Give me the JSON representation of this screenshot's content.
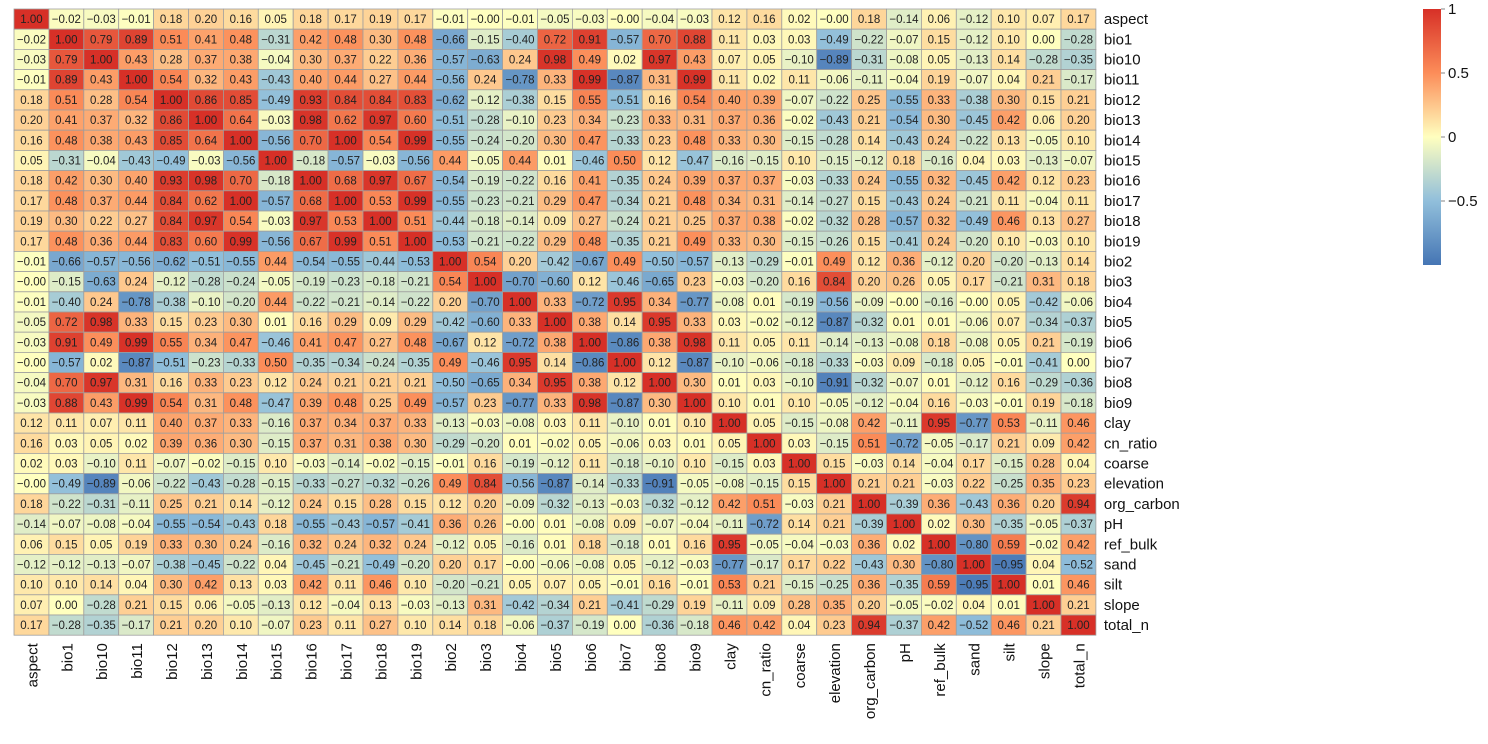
{
  "chart_data": {
    "type": "heatmap",
    "title": "",
    "variables": [
      "aspect",
      "bio1",
      "bio10",
      "bio11",
      "bio12",
      "bio13",
      "bio14",
      "bio15",
      "bio16",
      "bio17",
      "bio18",
      "bio19",
      "bio2",
      "bio3",
      "bio4",
      "bio5",
      "bio6",
      "bio7",
      "bio8",
      "bio9",
      "clay",
      "cn_ratio",
      "coarse",
      "elevation",
      "org_carbon",
      "pH",
      "ref_bulk",
      "sand",
      "silt",
      "slope",
      "total_n"
    ],
    "matrix": [
      [
        1.0,
        -0.02,
        -0.03,
        -0.01,
        0.18,
        0.2,
        0.16,
        0.05,
        0.18,
        0.17,
        0.19,
        0.17,
        -0.01,
        -0.0,
        -0.01,
        -0.05,
        -0.03,
        -0.0,
        -0.04,
        -0.03,
        0.12,
        0.16,
        0.02,
        -0.0,
        0.18,
        -0.14,
        0.06,
        -0.12,
        0.1,
        0.07,
        0.17
      ],
      [
        -0.02,
        1.0,
        0.79,
        0.89,
        0.51,
        0.41,
        0.48,
        -0.31,
        0.42,
        0.48,
        0.3,
        0.48,
        -0.66,
        -0.15,
        -0.4,
        0.72,
        0.91,
        -0.57,
        0.7,
        0.88,
        0.11,
        0.03,
        0.03,
        -0.49,
        -0.22,
        -0.07,
        0.15,
        -0.12,
        0.1,
        0.0,
        -0.28
      ],
      [
        -0.03,
        0.79,
        1.0,
        0.43,
        0.28,
        0.37,
        0.38,
        -0.04,
        0.3,
        0.37,
        0.22,
        0.36,
        -0.57,
        -0.63,
        0.24,
        0.98,
        0.49,
        0.02,
        0.97,
        0.43,
        0.07,
        0.05,
        -0.1,
        -0.89,
        -0.31,
        -0.08,
        0.05,
        -0.13,
        0.14,
        -0.28,
        -0.35
      ],
      [
        -0.01,
        0.89,
        0.43,
        1.0,
        0.54,
        0.32,
        0.43,
        -0.43,
        0.4,
        0.44,
        0.27,
        0.44,
        -0.56,
        0.24,
        -0.78,
        0.33,
        0.99,
        -0.87,
        0.31,
        0.99,
        0.11,
        0.02,
        0.11,
        -0.06,
        -0.11,
        -0.04,
        0.19,
        -0.07,
        0.04,
        0.21,
        -0.17
      ],
      [
        0.18,
        0.51,
        0.28,
        0.54,
        1.0,
        0.86,
        0.85,
        -0.49,
        0.93,
        0.84,
        0.84,
        0.83,
        -0.62,
        -0.12,
        -0.38,
        0.15,
        0.55,
        -0.51,
        0.16,
        0.54,
        0.4,
        0.39,
        -0.07,
        -0.22,
        0.25,
        -0.55,
        0.33,
        -0.38,
        0.3,
        0.15,
        0.21
      ],
      [
        0.2,
        0.41,
        0.37,
        0.32,
        0.86,
        1.0,
        0.64,
        -0.03,
        0.98,
        0.62,
        0.97,
        0.6,
        -0.51,
        -0.28,
        -0.1,
        0.23,
        0.34,
        -0.23,
        0.33,
        0.31,
        0.37,
        0.36,
        -0.02,
        -0.43,
        0.21,
        -0.54,
        0.3,
        -0.45,
        0.42,
        0.06,
        0.2
      ],
      [
        0.16,
        0.48,
        0.38,
        0.43,
        0.85,
        0.64,
        1.0,
        -0.56,
        0.7,
        1.0,
        0.54,
        0.99,
        -0.55,
        -0.24,
        -0.2,
        0.3,
        0.47,
        -0.33,
        0.23,
        0.48,
        0.33,
        0.3,
        -0.15,
        -0.28,
        0.14,
        -0.43,
        0.24,
        -0.22,
        0.13,
        -0.05,
        0.1
      ],
      [
        0.05,
        -0.31,
        -0.04,
        -0.43,
        -0.49,
        -0.03,
        -0.56,
        1.0,
        -0.18,
        -0.57,
        -0.03,
        -0.56,
        0.44,
        -0.05,
        0.44,
        0.01,
        -0.46,
        0.5,
        0.12,
        -0.47,
        -0.16,
        -0.15,
        0.1,
        -0.15,
        -0.12,
        0.18,
        -0.16,
        0.04,
        0.03,
        -0.13,
        -0.07
      ],
      [
        0.18,
        0.42,
        0.3,
        0.4,
        0.93,
        0.98,
        0.7,
        -0.18,
        1.0,
        0.68,
        0.97,
        0.67,
        -0.54,
        -0.19,
        -0.22,
        0.16,
        0.41,
        -0.35,
        0.24,
        0.39,
        0.37,
        0.37,
        -0.03,
        -0.33,
        0.24,
        -0.55,
        0.32,
        -0.45,
        0.42,
        0.12,
        0.23
      ],
      [
        0.17,
        0.48,
        0.37,
        0.44,
        0.84,
        0.62,
        1.0,
        -0.57,
        0.68,
        1.0,
        0.53,
        0.99,
        -0.55,
        -0.23,
        -0.21,
        0.29,
        0.47,
        -0.34,
        0.21,
        0.48,
        0.34,
        0.31,
        -0.14,
        -0.27,
        0.15,
        -0.43,
        0.24,
        -0.21,
        0.11,
        -0.04,
        0.11
      ],
      [
        0.19,
        0.3,
        0.22,
        0.27,
        0.84,
        0.97,
        0.54,
        -0.03,
        0.97,
        0.53,
        1.0,
        0.51,
        -0.44,
        -0.18,
        -0.14,
        0.09,
        0.27,
        -0.24,
        0.21,
        0.25,
        0.37,
        0.38,
        -0.02,
        -0.32,
        0.28,
        -0.57,
        0.32,
        -0.49,
        0.46,
        0.13,
        0.27
      ],
      [
        0.17,
        0.48,
        0.36,
        0.44,
        0.83,
        0.6,
        0.99,
        -0.56,
        0.67,
        0.99,
        0.51,
        1.0,
        -0.53,
        -0.21,
        -0.22,
        0.29,
        0.48,
        -0.35,
        0.21,
        0.49,
        0.33,
        0.3,
        -0.15,
        -0.26,
        0.15,
        -0.41,
        0.24,
        -0.2,
        0.1,
        -0.03,
        0.1
      ],
      [
        -0.01,
        -0.66,
        -0.57,
        -0.56,
        -0.62,
        -0.51,
        -0.55,
        0.44,
        -0.54,
        -0.55,
        -0.44,
        -0.53,
        1.0,
        0.54,
        0.2,
        -0.42,
        -0.67,
        0.49,
        -0.5,
        -0.57,
        -0.13,
        -0.29,
        -0.01,
        0.49,
        0.12,
        0.36,
        -0.12,
        0.2,
        -0.2,
        -0.13,
        0.14
      ],
      [
        -0.0,
        -0.15,
        -0.63,
        0.24,
        -0.12,
        -0.28,
        -0.24,
        -0.05,
        -0.19,
        -0.23,
        -0.18,
        -0.21,
        0.54,
        1.0,
        -0.7,
        -0.6,
        0.12,
        -0.46,
        -0.65,
        0.23,
        -0.03,
        -0.2,
        0.16,
        0.84,
        0.2,
        0.26,
        0.05,
        0.17,
        -0.21,
        0.31,
        0.18
      ],
      [
        -0.01,
        -0.4,
        0.24,
        -0.78,
        -0.38,
        -0.1,
        -0.2,
        0.44,
        -0.22,
        -0.21,
        -0.14,
        -0.22,
        0.2,
        -0.7,
        1.0,
        0.33,
        -0.72,
        0.95,
        0.34,
        -0.77,
        -0.08,
        0.01,
        -0.19,
        -0.56,
        -0.09,
        -0.0,
        -0.16,
        -0.0,
        0.05,
        -0.42,
        -0.06
      ],
      [
        -0.05,
        0.72,
        0.98,
        0.33,
        0.15,
        0.23,
        0.3,
        0.01,
        0.16,
        0.29,
        0.09,
        0.29,
        -0.42,
        -0.6,
        0.33,
        1.0,
        0.38,
        0.14,
        0.95,
        0.33,
        0.03,
        -0.02,
        -0.12,
        -0.87,
        -0.32,
        0.01,
        0.01,
        -0.06,
        0.07,
        -0.34,
        -0.37
      ],
      [
        -0.03,
        0.91,
        0.49,
        0.99,
        0.55,
        0.34,
        0.47,
        -0.46,
        0.41,
        0.47,
        0.27,
        0.48,
        -0.67,
        0.12,
        -0.72,
        0.38,
        1.0,
        -0.86,
        0.38,
        0.98,
        0.11,
        0.05,
        0.11,
        -0.14,
        -0.13,
        -0.08,
        0.18,
        -0.08,
        0.05,
        0.21,
        -0.19
      ],
      [
        -0.0,
        -0.57,
        0.02,
        -0.87,
        -0.51,
        -0.23,
        -0.33,
        0.5,
        -0.35,
        -0.34,
        -0.24,
        -0.35,
        0.49,
        -0.46,
        0.95,
        0.14,
        -0.86,
        1.0,
        0.12,
        -0.87,
        -0.1,
        -0.06,
        -0.18,
        -0.33,
        -0.03,
        0.09,
        -0.18,
        0.05,
        -0.01,
        -0.41,
        0.0
      ],
      [
        -0.04,
        0.7,
        0.97,
        0.31,
        0.16,
        0.33,
        0.23,
        0.12,
        0.24,
        0.21,
        0.21,
        0.21,
        -0.5,
        -0.65,
        0.34,
        0.95,
        0.38,
        0.12,
        1.0,
        0.3,
        0.01,
        0.03,
        -0.1,
        -0.91,
        -0.32,
        -0.07,
        0.01,
        -0.12,
        0.16,
        -0.29,
        -0.36
      ],
      [
        -0.03,
        0.88,
        0.43,
        0.99,
        0.54,
        0.31,
        0.48,
        -0.47,
        0.39,
        0.48,
        0.25,
        0.49,
        -0.57,
        0.23,
        -0.77,
        0.33,
        0.98,
        -0.87,
        0.3,
        1.0,
        0.1,
        0.01,
        0.1,
        -0.05,
        -0.12,
        -0.04,
        0.16,
        -0.03,
        -0.01,
        0.19,
        -0.18
      ],
      [
        0.12,
        0.11,
        0.07,
        0.11,
        0.4,
        0.37,
        0.33,
        -0.16,
        0.37,
        0.34,
        0.37,
        0.33,
        -0.13,
        -0.03,
        -0.08,
        0.03,
        0.11,
        -0.1,
        0.01,
        0.1,
        1.0,
        0.05,
        -0.15,
        -0.08,
        0.42,
        -0.11,
        0.95,
        -0.77,
        0.53,
        -0.11,
        0.46
      ],
      [
        0.16,
        0.03,
        0.05,
        0.02,
        0.39,
        0.36,
        0.3,
        -0.15,
        0.37,
        0.31,
        0.38,
        0.3,
        -0.29,
        -0.2,
        0.01,
        -0.02,
        0.05,
        -0.06,
        0.03,
        0.01,
        0.05,
        1.0,
        0.03,
        -0.15,
        0.51,
        -0.72,
        -0.05,
        -0.17,
        0.21,
        0.09,
        0.42
      ],
      [
        0.02,
        0.03,
        -0.1,
        0.11,
        -0.07,
        -0.02,
        -0.15,
        0.1,
        -0.03,
        -0.14,
        -0.02,
        -0.15,
        -0.01,
        0.16,
        -0.19,
        -0.12,
        0.11,
        -0.18,
        -0.1,
        0.1,
        -0.15,
        0.03,
        1.0,
        0.15,
        -0.03,
        0.14,
        -0.04,
        0.17,
        -0.15,
        0.28,
        0.04
      ],
      [
        -0.0,
        -0.49,
        -0.89,
        -0.06,
        -0.22,
        -0.43,
        -0.28,
        -0.15,
        -0.33,
        -0.27,
        -0.32,
        -0.26,
        0.49,
        0.84,
        -0.56,
        -0.87,
        -0.14,
        -0.33,
        -0.91,
        -0.05,
        -0.08,
        -0.15,
        0.15,
        1.0,
        0.21,
        0.21,
        -0.03,
        0.22,
        -0.25,
        0.35,
        0.23
      ],
      [
        0.18,
        -0.22,
        -0.31,
        -0.11,
        0.25,
        0.21,
        0.14,
        -0.12,
        0.24,
        0.15,
        0.28,
        0.15,
        0.12,
        0.2,
        -0.09,
        -0.32,
        -0.13,
        -0.03,
        -0.32,
        -0.12,
        0.42,
        0.51,
        -0.03,
        0.21,
        1.0,
        -0.39,
        0.36,
        -0.43,
        0.36,
        0.2,
        0.94
      ],
      [
        -0.14,
        -0.07,
        -0.08,
        -0.04,
        -0.55,
        -0.54,
        -0.43,
        0.18,
        -0.55,
        -0.43,
        -0.57,
        -0.41,
        0.36,
        0.26,
        -0.0,
        0.01,
        -0.08,
        0.09,
        -0.07,
        -0.04,
        -0.11,
        -0.72,
        0.14,
        0.21,
        -0.39,
        1.0,
        0.02,
        0.3,
        -0.35,
        -0.05,
        -0.37
      ],
      [
        0.06,
        0.15,
        0.05,
        0.19,
        0.33,
        0.3,
        0.24,
        -0.16,
        0.32,
        0.24,
        0.32,
        0.24,
        -0.12,
        0.05,
        -0.16,
        0.01,
        0.18,
        -0.18,
        0.01,
        0.16,
        0.95,
        -0.05,
        -0.04,
        -0.03,
        0.36,
        0.02,
        1.0,
        -0.8,
        0.59,
        -0.02,
        0.42
      ],
      [
        -0.12,
        -0.12,
        -0.13,
        -0.07,
        -0.38,
        -0.45,
        -0.22,
        0.04,
        -0.45,
        -0.21,
        -0.49,
        -0.2,
        0.2,
        0.17,
        -0.0,
        -0.06,
        -0.08,
        0.05,
        -0.12,
        -0.03,
        -0.77,
        -0.17,
        0.17,
        0.22,
        -0.43,
        0.3,
        -0.8,
        1.0,
        -0.95,
        0.04,
        -0.52
      ],
      [
        0.1,
        0.1,
        0.14,
        0.04,
        0.3,
        0.42,
        0.13,
        0.03,
        0.42,
        0.11,
        0.46,
        0.1,
        -0.2,
        -0.21,
        0.05,
        0.07,
        0.05,
        -0.01,
        0.16,
        -0.01,
        0.53,
        0.21,
        -0.15,
        -0.25,
        0.36,
        -0.35,
        0.59,
        -0.95,
        1.0,
        0.01,
        0.46
      ],
      [
        0.07,
        0.0,
        -0.28,
        0.21,
        0.15,
        0.06,
        -0.05,
        -0.13,
        0.12,
        -0.04,
        0.13,
        -0.03,
        -0.13,
        0.31,
        -0.42,
        -0.34,
        0.21,
        -0.41,
        -0.29,
        0.19,
        -0.11,
        0.09,
        0.28,
        0.35,
        0.2,
        -0.05,
        -0.02,
        0.04,
        0.01,
        1.0,
        0.21
      ],
      [
        0.17,
        -0.28,
        -0.35,
        -0.17,
        0.21,
        0.2,
        0.1,
        -0.07,
        0.23,
        0.11,
        0.27,
        0.1,
        0.14,
        0.18,
        -0.06,
        -0.37,
        -0.19,
        0.0,
        -0.36,
        -0.18,
        0.46,
        0.42,
        0.04,
        0.23,
        0.94,
        -0.37,
        0.42,
        -0.52,
        0.46,
        0.21,
        1.0
      ]
    ],
    "color_scale": {
      "min": -1,
      "max": 1,
      "stops": [
        {
          "value": -1,
          "color": "#4575b4"
        },
        {
          "value": -0.5,
          "color": "#91bfdb"
        },
        {
          "value": 0,
          "color": "#ffffbf"
        },
        {
          "value": 0.5,
          "color": "#fc8d59"
        },
        {
          "value": 1,
          "color": "#d73027"
        }
      ],
      "legend_ticks": [
        {
          "value": 1,
          "label": "1"
        },
        {
          "value": 0.5,
          "label": "0.5"
        },
        {
          "value": 0,
          "label": "0"
        },
        {
          "value": -0.5,
          "label": "−0.5"
        }
      ]
    },
    "legend_position": "top-right",
    "cell_border_color": "#9e9e9e"
  }
}
